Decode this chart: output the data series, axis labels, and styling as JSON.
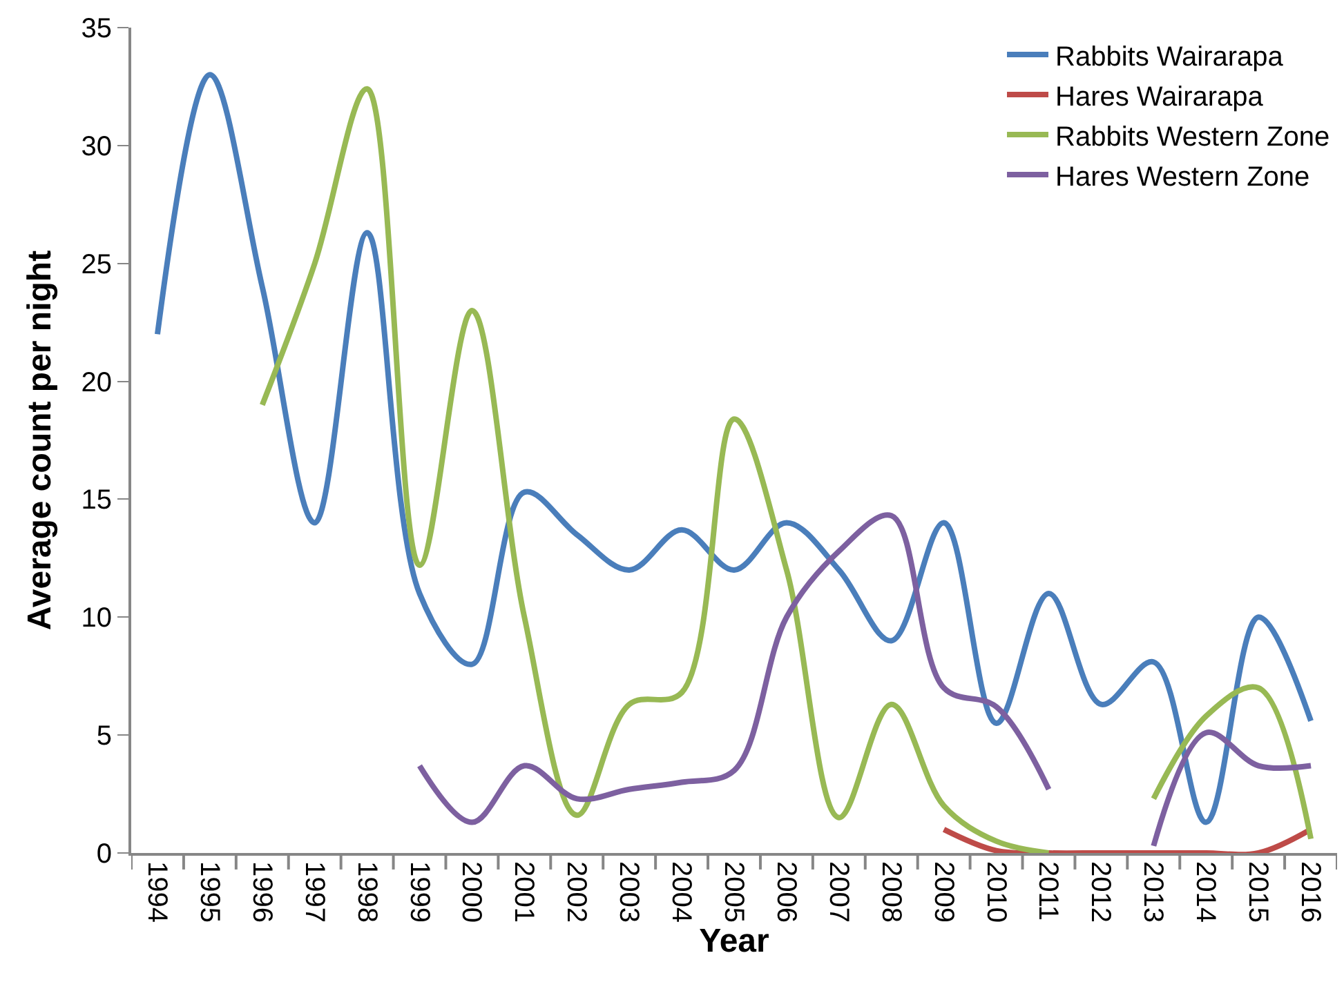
{
  "chart_data": {
    "type": "line",
    "xlabel": "Year",
    "ylabel": "Average count per night",
    "categories": [
      "1994",
      "1995",
      "1996",
      "1997",
      "1998",
      "1999",
      "2000",
      "2001",
      "2002",
      "2003",
      "2004",
      "2005",
      "2006",
      "2007",
      "2008",
      "2009",
      "2010",
      "2011",
      "2012",
      "2013",
      "2014",
      "2015",
      "2016"
    ],
    "series": [
      {
        "name": "Rabbits Wairarapa",
        "color": "#4a7ebb",
        "values": [
          22,
          33,
          24,
          14,
          26.3,
          11,
          8,
          15.3,
          13.5,
          12,
          13.7,
          12,
          14,
          12,
          9,
          14,
          5.5,
          11,
          6.3,
          8.1,
          1.3,
          10,
          5.6
        ]
      },
      {
        "name": "Hares Wairarapa",
        "color": "#be4b48",
        "values": [
          null,
          null,
          null,
          null,
          null,
          null,
          null,
          null,
          null,
          null,
          null,
          null,
          null,
          null,
          null,
          1,
          0.1,
          0,
          0,
          0,
          0,
          0,
          1
        ]
      },
      {
        "name": "Rabbits Western Zone",
        "color": "#98b954",
        "values": [
          null,
          null,
          19,
          25,
          32.4,
          12.2,
          23,
          10,
          1.6,
          6.3,
          6.8,
          18.4,
          12,
          1.5,
          6.3,
          2,
          0.5,
          0,
          null,
          2.3,
          5.8,
          7,
          0.6
        ]
      },
      {
        "name": "Hares Western Zone",
        "color": "#7d60a0",
        "values": [
          null,
          null,
          null,
          null,
          null,
          3.7,
          1.3,
          3.7,
          2.3,
          2.7,
          3,
          3.5,
          10,
          12.8,
          14.3,
          7,
          6.2,
          2.7,
          null,
          0.3,
          5.1,
          3.7,
          3.7
        ]
      }
    ],
    "ylim": [
      0,
      35
    ],
    "yticks": [
      0,
      5,
      10,
      15,
      20,
      25,
      30,
      35
    ],
    "legend": "top right",
    "marker": "none",
    "line_style": "solid"
  }
}
